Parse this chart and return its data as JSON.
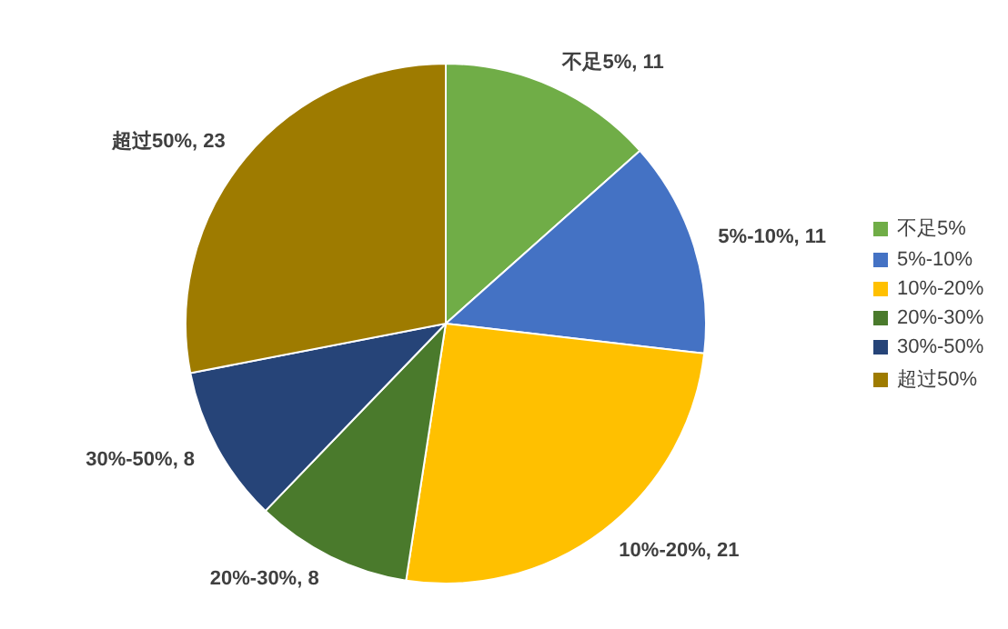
{
  "chart_data": {
    "type": "pie",
    "categories": [
      "不足5%",
      "5%-10%",
      "10%-20%",
      "20%-30%",
      "30%-50%",
      "超过50%"
    ],
    "values": [
      11,
      11,
      21,
      8,
      8,
      23
    ],
    "value_labels": [
      "不足5%, 11",
      "5%-10%, 11",
      "10%-20%, 21",
      "20%-30%, 8",
      "30%-50%, 8",
      "超过50%, 23"
    ],
    "colors": [
      "#70ad47",
      "#4472c4",
      "#ffc000",
      "#4a7a2c",
      "#264478",
      "#9e7b00"
    ],
    "legend": "right"
  }
}
